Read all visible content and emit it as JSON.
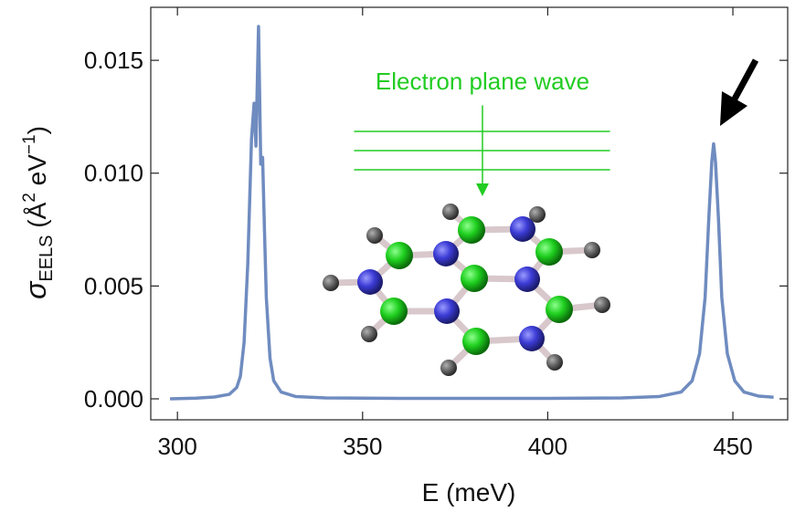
{
  "chart_data": {
    "type": "line",
    "xlabel": "E (meV)",
    "ylabel": {
      "symbol": "σ",
      "subscript": "EELS",
      "unit_open": " (Å",
      "unit_sup1": "2",
      "unit_mid": " eV",
      "unit_sup2": "−1",
      "unit_close": ")"
    },
    "annotation": "Electron plane wave",
    "xlim": [
      292.8,
      464.8
    ],
    "ylim": [
      -0.00093,
      0.01735
    ],
    "xticks": [
      300,
      350,
      400,
      450
    ],
    "yticks": [
      {
        "value": 0,
        "label": "0.000"
      },
      0.005,
      {
        "value": 0.01,
        "label": "0.010"
      },
      0.015
    ],
    "x": [
      298,
      305,
      310,
      314,
      316,
      317,
      318,
      319,
      320,
      320.7,
      321.2,
      321.9,
      322.5,
      323.0,
      323.5,
      324,
      325,
      326,
      328,
      332,
      340,
      360,
      380,
      400,
      420,
      430,
      436,
      439,
      441,
      442.5,
      443.5,
      444.3,
      444.8,
      445.3,
      446.1,
      447,
      448.5,
      450.5,
      453,
      457,
      461
    ],
    "series": [
      {
        "color": "#6f8cc0",
        "values": [
          0.0,
          3e-05,
          8e-05,
          0.0002,
          0.0005,
          0.001,
          0.0025,
          0.006,
          0.0115,
          0.0131,
          0.0112,
          0.0165,
          0.0104,
          0.0107,
          0.0075,
          0.0045,
          0.0018,
          0.0008,
          0.0003,
          0.0001,
          4e-05,
          2e-05,
          2e-05,
          2e-05,
          4e-05,
          0.0001,
          0.0003,
          0.0008,
          0.002,
          0.0045,
          0.008,
          0.0105,
          0.0113,
          0.0105,
          0.008,
          0.0045,
          0.002,
          0.0008,
          0.0003,
          0.00012,
          7e-05
        ]
      }
    ]
  }
}
